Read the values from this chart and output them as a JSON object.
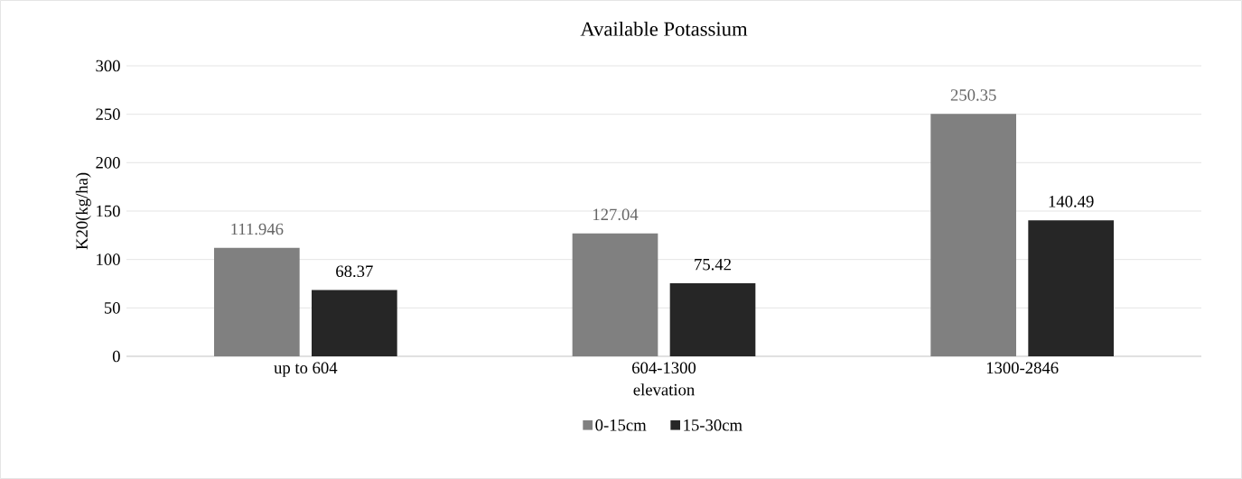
{
  "chart_data": {
    "type": "bar",
    "title": "Available Potassium",
    "xlabel": "elevation",
    "ylabel": "K20(kg/ha)",
    "categories": [
      "up to 604",
      "604-1300",
      "1300-2846"
    ],
    "series": [
      {
        "name": "0-15cm",
        "color": "#808080",
        "values": [
          111.946,
          127.04,
          250.35
        ]
      },
      {
        "name": "15-30cm",
        "color": "#262626",
        "values": [
          68.37,
          75.42,
          140.49
        ]
      }
    ],
    "ylim": [
      0,
      300
    ],
    "yticks": [
      0,
      50,
      100,
      150,
      200,
      250,
      300
    ],
    "grid": "y",
    "legend": "bottom",
    "data_labels": true
  }
}
